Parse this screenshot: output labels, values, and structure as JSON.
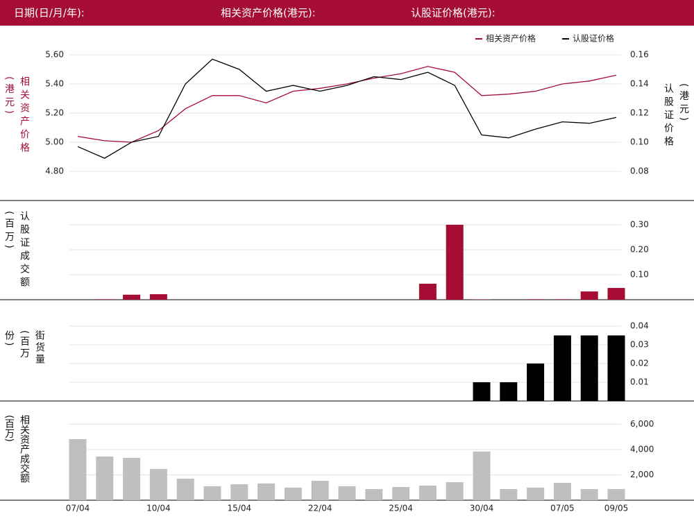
{
  "header": {
    "labels": [
      "日期(日/月/年):",
      "相关资产价格(港元):",
      "认股证价格(港元):"
    ]
  },
  "chart_data": [
    {
      "type": "line",
      "legend": "top-right",
      "grid": true,
      "ylabel": "相关资产价格(港元)",
      "y2label": "认股证价格(港元)",
      "ylim": [
        4.7,
        5.7
      ],
      "yticks": [
        {
          "value": 4.8,
          "label": "4.80"
        },
        {
          "value": 5.0,
          "label": "5.00"
        },
        {
          "value": 5.2,
          "label": "5.20"
        },
        {
          "value": 5.4,
          "label": "5.40"
        },
        {
          "value": 5.6,
          "label": "5.60"
        }
      ],
      "y2lim": [
        0.07,
        0.17
      ],
      "y2ticks": [
        {
          "value": 0.08,
          "label": "0.08"
        },
        {
          "value": 0.1,
          "label": "0.10"
        },
        {
          "value": 0.12,
          "label": "0.12"
        },
        {
          "value": 0.14,
          "label": "0.14"
        },
        {
          "value": 0.16,
          "label": "0.16"
        }
      ],
      "series": [
        {
          "name": "相关资产价格",
          "color": "#a50d34",
          "values": [
            5.04,
            5.01,
            5.0,
            5.08,
            5.23,
            5.32,
            5.32,
            5.27,
            5.35,
            5.37,
            5.4,
            5.44,
            5.47,
            5.52,
            5.48,
            5.32,
            5.33,
            5.35,
            5.4,
            5.42,
            5.46
          ]
        },
        {
          "name": "认股证价格",
          "color": "#000000",
          "axis": "y2",
          "values": [
            0.097,
            0.089,
            0.1,
            0.104,
            0.14,
            0.157,
            0.15,
            0.135,
            0.139,
            0.135,
            0.139,
            0.145,
            0.143,
            0.148,
            0.139,
            0.105,
            0.103,
            0.109,
            0.114,
            0.113,
            0.117
          ]
        }
      ]
    },
    {
      "type": "bar",
      "yaxis": "right",
      "grid": true,
      "ylabel": "认股证成交额(百万)",
      "color": "#a50d34",
      "ylim": [
        0,
        0.36
      ],
      "yticks": [
        {
          "value": 0.1,
          "label": "0.10"
        },
        {
          "value": 0.2,
          "label": "0.20"
        },
        {
          "value": 0.3,
          "label": "0.30"
        }
      ],
      "values": [
        0,
        0.002,
        0.02,
        0.022,
        0,
        0,
        0,
        0,
        0,
        0,
        0,
        0,
        0,
        0.064,
        0.3,
        0.001,
        0,
        0.002,
        0.002,
        0.033,
        0.047
      ]
    },
    {
      "type": "bar",
      "yaxis": "right",
      "grid": true,
      "ylabel": "街货量(百万份)",
      "color": "#000000",
      "ylim": [
        0,
        0.045
      ],
      "yticks": [
        0.01,
        0.02,
        0.03,
        0.04
      ],
      "values": [
        0,
        0,
        0,
        0,
        0,
        0,
        0,
        0,
        0,
        0,
        0,
        0,
        0,
        0,
        0,
        0.01,
        0.01,
        0.02,
        0.035,
        0.035,
        0.035
      ]
    },
    {
      "type": "bar",
      "yaxis": "right",
      "grid": true,
      "ylabel": "相关资产成交额(百万)",
      "color": "#bfbfbf",
      "ylim": [
        0,
        7000
      ],
      "yticks": [
        {
          "value": 2000,
          "label": "2,000"
        },
        {
          "value": 4000,
          "label": "4,000"
        },
        {
          "value": 6000,
          "label": "6,000"
        }
      ],
      "categories": [
        "07/04",
        null,
        null,
        "10/04",
        null,
        null,
        "15/04",
        null,
        null,
        "22/04",
        null,
        null,
        "25/04",
        null,
        null,
        "30/04",
        null,
        null,
        "07/05",
        null,
        "09/05"
      ],
      "values": [
        4820,
        3450,
        3340,
        2470,
        1700,
        1100,
        1260,
        1320,
        990,
        1530,
        1100,
        880,
        1040,
        1150,
        1420,
        3840,
        880,
        990,
        1370,
        880,
        880
      ]
    }
  ]
}
